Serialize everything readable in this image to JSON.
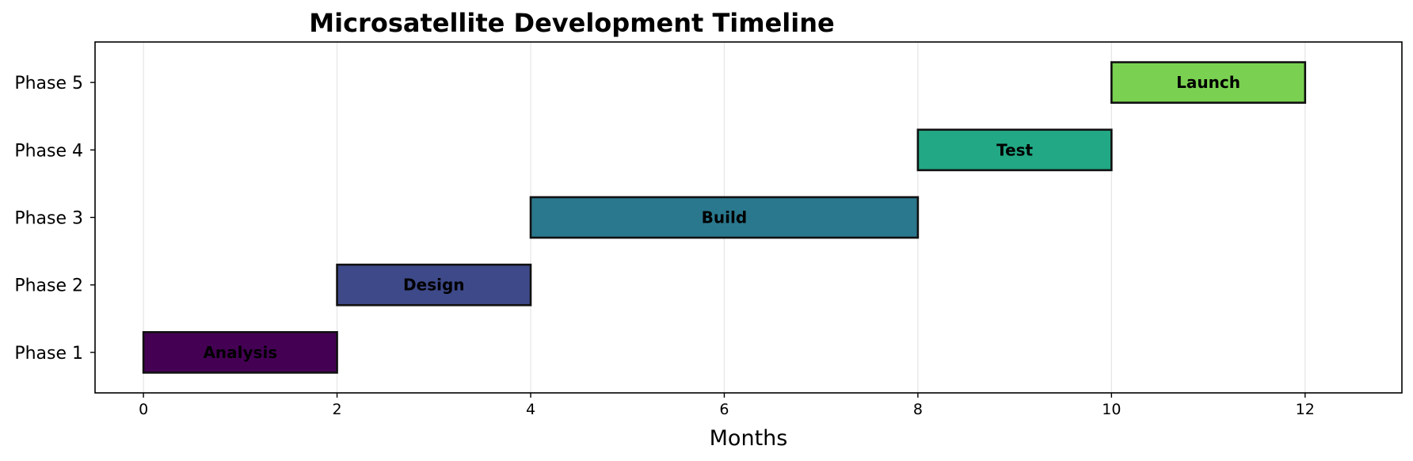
{
  "chart_data": {
    "type": "bar",
    "orientation": "horizontal-gantt",
    "title": "Microsatellite Development Timeline",
    "xlabel": "Months",
    "ylabel": "",
    "xlim": [
      -0.5,
      13
    ],
    "xticks": [
      0,
      2,
      4,
      6,
      8,
      10,
      12
    ],
    "xtick_labels": [
      "0",
      "2",
      "4",
      "6",
      "8",
      "10",
      "12"
    ],
    "categories": [
      "Phase 1",
      "Phase 2",
      "Phase 3",
      "Phase 4",
      "Phase 5"
    ],
    "grid": "vertical",
    "tasks": [
      {
        "phase": "Phase 1",
        "label": "Analysis",
        "start": 0,
        "end": 2,
        "color": "#440154"
      },
      {
        "phase": "Phase 2",
        "label": "Design",
        "start": 2,
        "end": 4,
        "color": "#3e4989"
      },
      {
        "phase": "Phase 3",
        "label": "Build",
        "start": 4,
        "end": 8,
        "color": "#2a788e"
      },
      {
        "phase": "Phase 4",
        "label": "Test",
        "start": 8,
        "end": 10,
        "color": "#22a884"
      },
      {
        "phase": "Phase 5",
        "label": "Launch",
        "start": 10,
        "end": 12,
        "color": "#7ad151"
      }
    ]
  }
}
